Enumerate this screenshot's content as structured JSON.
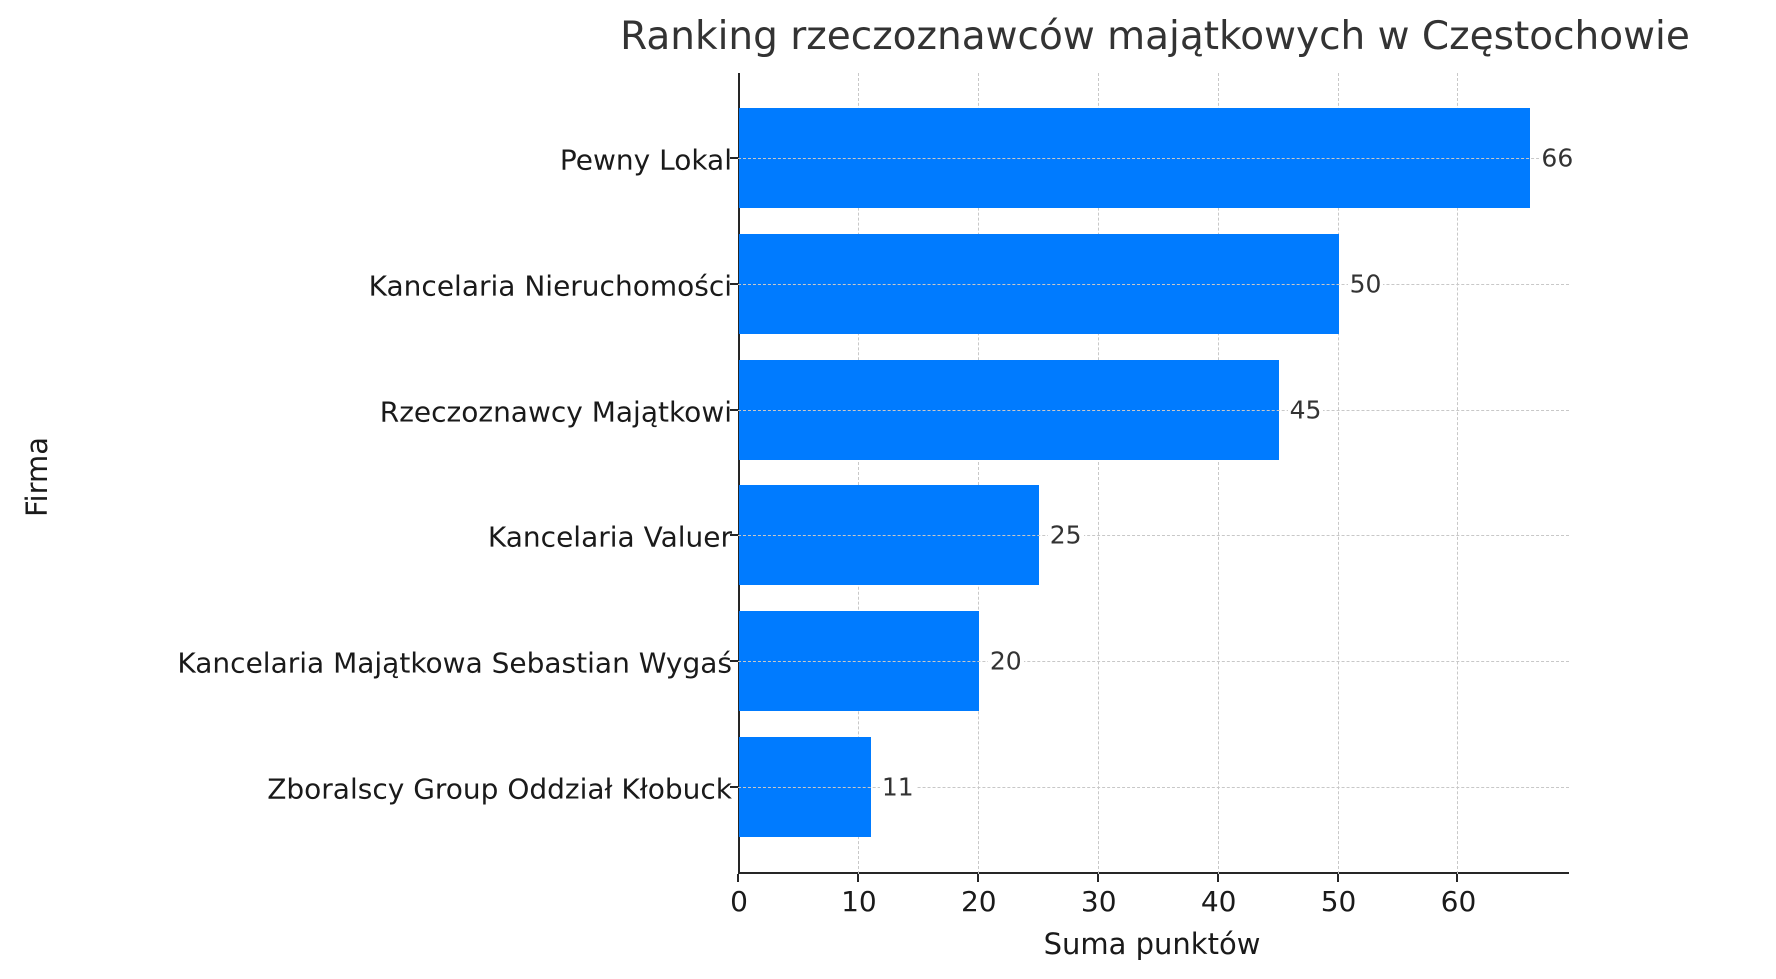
{
  "chart_data": {
    "type": "bar",
    "orientation": "horizontal",
    "title": "Ranking rzeczoznawców majątkowych w Częstochowie",
    "xlabel": "Suma punktów",
    "ylabel": "Firma",
    "categories": [
      "Pewny Lokal",
      "Kancelaria Nieruchomości",
      "Rzeczoznawcy Majątkowi",
      "Kancelaria Valuer",
      "Kancelaria Majątkowa Sebastian Wygaś",
      "Zboralscy Group Oddział Kłobuck"
    ],
    "values": [
      66,
      50,
      45,
      25,
      20,
      11
    ],
    "value_labels": [
      "66",
      "50",
      "45",
      "25",
      "20",
      "11"
    ],
    "xlim": [
      0,
      69.3
    ],
    "xticks": [
      0,
      10,
      20,
      30,
      40,
      50,
      60
    ],
    "xtick_labels": [
      "0",
      "10",
      "20",
      "30",
      "40",
      "50",
      "60"
    ],
    "grid": true,
    "grid_style": "dashed",
    "bar_color": "#007bff",
    "legend": null
  }
}
